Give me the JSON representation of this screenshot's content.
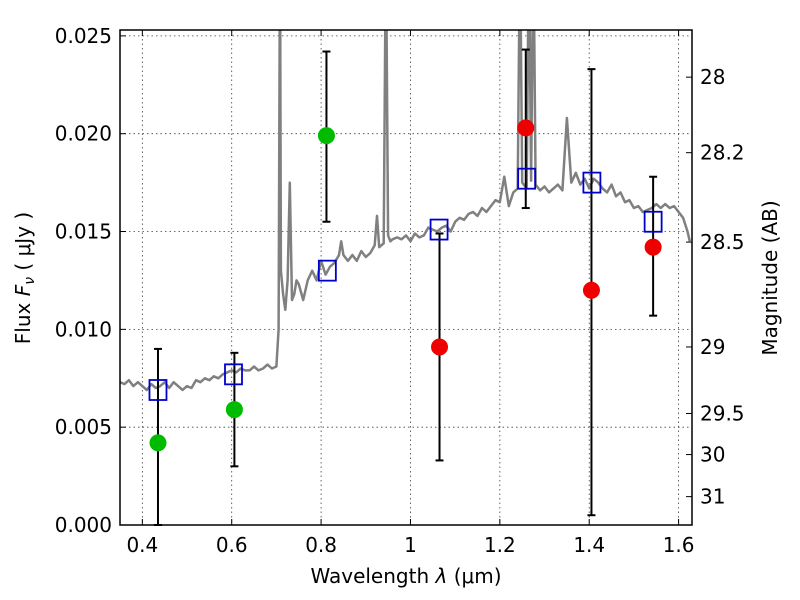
{
  "chart_data": {
    "type": "scatter",
    "xlabel_text": "Wavelength",
    "xlabel_symbol": "λ",
    "xlabel_unit": "(μm)",
    "ylabel_text": "Flux",
    "ylabel_symbol": "F",
    "ylabel_subscript": "ν",
    "ylabel_unit": "( μJy )",
    "y2label": "Magnitude (AB)",
    "xlim": [
      0.35,
      1.63
    ],
    "ylim": [
      0.0,
      0.0253
    ],
    "x_ticks": [
      {
        "value": 0.4,
        "label": "0.4"
      },
      {
        "value": 0.6,
        "label": "0.6"
      },
      {
        "value": 0.8,
        "label": "0.8"
      },
      {
        "value": 1.0,
        "label": "1"
      },
      {
        "value": 1.2,
        "label": "1.2"
      },
      {
        "value": 1.4,
        "label": "1.4"
      },
      {
        "value": 1.6,
        "label": "1.6"
      }
    ],
    "y_ticks": [
      {
        "value": 0.0,
        "label": "0.000"
      },
      {
        "value": 0.005,
        "label": "0.005"
      },
      {
        "value": 0.01,
        "label": "0.010"
      },
      {
        "value": 0.015,
        "label": "0.015"
      },
      {
        "value": 0.02,
        "label": "0.020"
      },
      {
        "value": 0.025,
        "label": "0.025"
      }
    ],
    "y2_ticks": [
      {
        "flux": 0.02289,
        "label": "28"
      },
      {
        "flux": 0.01903,
        "label": "28.2"
      },
      {
        "flux": 0.01446,
        "label": "28.5"
      },
      {
        "flux": 0.0091,
        "label": "29"
      },
      {
        "flux": 0.0057,
        "label": "29.5"
      },
      {
        "flux": 0.0036,
        "label": "30"
      },
      {
        "flux": 0.00145,
        "label": "31"
      }
    ],
    "grid": true,
    "series": [
      {
        "kind": "spectrum",
        "color": "#808080",
        "x": [
          0.35,
          0.36,
          0.37,
          0.38,
          0.39,
          0.4,
          0.41,
          0.42,
          0.43,
          0.44,
          0.45,
          0.46,
          0.47,
          0.48,
          0.49,
          0.5,
          0.51,
          0.52,
          0.53,
          0.54,
          0.55,
          0.56,
          0.57,
          0.58,
          0.59,
          0.6,
          0.61,
          0.62,
          0.63,
          0.64,
          0.65,
          0.66,
          0.67,
          0.68,
          0.69,
          0.7,
          0.705,
          0.708,
          0.71,
          0.715,
          0.72,
          0.725,
          0.73,
          0.735,
          0.74,
          0.745,
          0.75,
          0.76,
          0.77,
          0.78,
          0.79,
          0.8,
          0.81,
          0.82,
          0.83,
          0.84,
          0.845,
          0.85,
          0.86,
          0.87,
          0.88,
          0.89,
          0.9,
          0.91,
          0.92,
          0.925,
          0.93,
          0.94,
          0.945,
          0.95,
          0.955,
          0.96,
          0.97,
          0.98,
          0.99,
          1.0,
          1.01,
          1.02,
          1.03,
          1.04,
          1.05,
          1.06,
          1.07,
          1.08,
          1.09,
          1.1,
          1.11,
          1.12,
          1.13,
          1.14,
          1.15,
          1.16,
          1.17,
          1.18,
          1.19,
          1.2,
          1.21,
          1.22,
          1.23,
          1.24,
          1.245,
          1.25,
          1.26,
          1.265,
          1.27,
          1.275,
          1.28,
          1.29,
          1.3,
          1.31,
          1.32,
          1.33,
          1.34,
          1.35,
          1.36,
          1.37,
          1.38,
          1.39,
          1.4,
          1.41,
          1.42,
          1.43,
          1.44,
          1.45,
          1.46,
          1.47,
          1.48,
          1.49,
          1.5,
          1.51,
          1.52,
          1.53,
          1.54,
          1.55,
          1.56,
          1.57,
          1.58,
          1.59,
          1.6,
          1.61,
          1.62,
          1.625
        ],
        "y": [
          0.0073,
          0.0072,
          0.0074,
          0.0071,
          0.0073,
          0.0071,
          0.0069,
          0.0072,
          0.007,
          0.0071,
          0.0073,
          0.007,
          0.0073,
          0.0071,
          0.0069,
          0.0071,
          0.007,
          0.0074,
          0.0073,
          0.0075,
          0.0074,
          0.0076,
          0.0075,
          0.0077,
          0.0078,
          0.0079,
          0.0078,
          0.008,
          0.0079,
          0.0079,
          0.0081,
          0.0079,
          0.008,
          0.0082,
          0.008,
          0.0081,
          0.01,
          0.03,
          0.013,
          0.0118,
          0.011,
          0.0125,
          0.0175,
          0.0115,
          0.0118,
          0.0125,
          0.0123,
          0.0115,
          0.0125,
          0.013,
          0.0125,
          0.0135,
          0.0128,
          0.0132,
          0.0134,
          0.0138,
          0.0145,
          0.0138,
          0.0135,
          0.0138,
          0.0135,
          0.014,
          0.0137,
          0.0139,
          0.0143,
          0.0158,
          0.0142,
          0.0144,
          0.03,
          0.0148,
          0.0145,
          0.0146,
          0.0147,
          0.0146,
          0.0148,
          0.0145,
          0.0149,
          0.0147,
          0.0148,
          0.0152,
          0.0151,
          0.015,
          0.0152,
          0.0153,
          0.015,
          0.0155,
          0.0157,
          0.0156,
          0.0159,
          0.016,
          0.0158,
          0.0162,
          0.016,
          0.0163,
          0.0166,
          0.0165,
          0.0178,
          0.0163,
          0.017,
          0.0172,
          0.03,
          0.0175,
          0.0172,
          0.03,
          0.0176,
          0.03,
          0.0174,
          0.0171,
          0.0173,
          0.017,
          0.0172,
          0.0174,
          0.0171,
          0.0208,
          0.0175,
          0.018,
          0.0174,
          0.0177,
          0.0172,
          0.0177,
          0.0175,
          0.0172,
          0.017,
          0.0174,
          0.0168,
          0.017,
          0.0165,
          0.0166,
          0.0162,
          0.0163,
          0.016,
          0.0161,
          0.0162,
          0.0164,
          0.0162,
          0.0164,
          0.0162,
          0.0163,
          0.016,
          0.0157,
          0.015,
          0.0145
        ]
      },
      {
        "kind": "model-photometry",
        "marker": "open-square",
        "color": "#0000cc",
        "x": [
          0.435,
          0.604,
          0.814,
          1.064,
          1.26,
          1.406,
          1.543
        ],
        "y": [
          0.0069,
          0.0077,
          0.013,
          0.0151,
          0.0177,
          0.0175,
          0.0155
        ]
      },
      {
        "kind": "observed",
        "marker": "filled-circle",
        "color": "#00bb00",
        "x": [
          0.435,
          0.606,
          0.812
        ],
        "y": [
          0.0042,
          0.0059,
          0.0199
        ],
        "yerr_low": [
          0.0,
          0.003,
          0.0155
        ],
        "yerr_high": [
          0.009,
          0.0088,
          0.0242
        ]
      },
      {
        "kind": "observed",
        "marker": "filled-circle",
        "color": "#ee0000",
        "x": [
          1.065,
          1.258,
          1.405,
          1.543
        ],
        "y": [
          0.0091,
          0.0203,
          0.012,
          0.0142
        ],
        "yerr_low": [
          0.0033,
          0.0162,
          0.0005,
          0.0107
        ],
        "yerr_high": [
          0.0149,
          0.0243,
          0.0233,
          0.0178
        ]
      }
    ]
  }
}
